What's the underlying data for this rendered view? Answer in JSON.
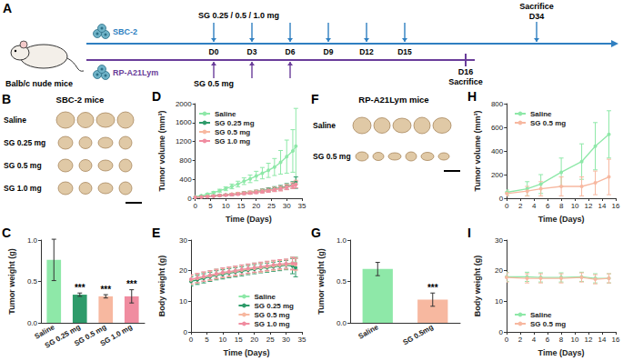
{
  "diagram": {
    "label": "A",
    "mouse_label": "Balb/c nude mice",
    "days": [
      "D0",
      "D3",
      "D6",
      "D9",
      "D12",
      "D15"
    ],
    "lines": [
      {
        "cell_line": "SBC-2",
        "dose": "SG 0.25 / 0.5 / 1.0 mg",
        "dose_days": [
          "D0",
          "D3",
          "D6",
          "D9",
          "D12",
          "D15"
        ],
        "end_day": "D34",
        "end_text": "Sacrifice",
        "color": "#2f7fc1"
      },
      {
        "cell_line": "RP-A21Lym",
        "dose": "SG 0.5 mg",
        "dose_days": [
          "D0",
          "D3",
          "D6"
        ],
        "end_day": "D16",
        "end_text": "Sacrifice",
        "color": "#6a3d9a"
      }
    ]
  },
  "photos": [
    {
      "label": "B",
      "title": "SBC-2 mice",
      "rows": [
        "Saline",
        "SG 0.25 mg",
        "SG 0.5 mg",
        "SG 1.0 mg"
      ]
    },
    {
      "label": "F",
      "title": "RP-A21Lym mice",
      "rows": [
        "Saline",
        "SG 0.5 mg"
      ]
    }
  ],
  "chart_data": [
    {
      "panel": "C",
      "type": "bar",
      "ylabel": "Tumor weight (g)",
      "categories": [
        "Saline",
        "SG 0.25 mg",
        "SG 0.5 mg",
        "SG 1.0 mg"
      ],
      "values": [
        0.76,
        0.34,
        0.32,
        0.32
      ],
      "errors": [
        0.25,
        0.02,
        0.02,
        0.08
      ],
      "significance": [
        null,
        "***",
        "***",
        "***"
      ],
      "colors": [
        "#8ee8a8",
        "#2e9b6a",
        "#f7b8a0",
        "#f08ca0"
      ],
      "ylim": [
        0,
        1
      ],
      "yticks": [
        {
          "value": 0,
          "label": "0.0"
        },
        0.5,
        {
          "value": 1,
          "label": "1.0"
        }
      ],
      "grid": false
    },
    {
      "panel": "D",
      "type": "line",
      "xlabel": "Time (Days)",
      "ylabel": "Tumor volume (mm³)",
      "x": [
        0,
        2,
        4,
        6,
        8,
        10,
        12,
        14,
        16,
        18,
        20,
        22,
        24,
        26,
        28,
        30,
        32,
        33
      ],
      "series": [
        {
          "name": "Saline",
          "color": "#8ee8a8",
          "values": [
            30,
            55,
            85,
            120,
            160,
            200,
            250,
            300,
            360,
            410,
            470,
            530,
            590,
            660,
            760,
            880,
            1000,
            1100
          ],
          "errors": [
            5,
            10,
            15,
            20,
            30,
            40,
            50,
            60,
            70,
            80,
            100,
            120,
            150,
            180,
            250,
            350,
            450,
            800
          ]
        },
        {
          "name": "SG 0.25 mg",
          "color": "#2e9b6a",
          "values": [
            20,
            30,
            40,
            50,
            60,
            70,
            80,
            95,
            110,
            120,
            140,
            160,
            180,
            200,
            220,
            250,
            280,
            330
          ],
          "errors": [
            5,
            8,
            10,
            12,
            15,
            18,
            20,
            22,
            25,
            28,
            30,
            35,
            40,
            45,
            50,
            60,
            70,
            120
          ]
        },
        {
          "name": "SG 0.5 mg",
          "color": "#f7b8a0",
          "values": [
            20,
            30,
            40,
            50,
            60,
            70,
            85,
            100,
            110,
            125,
            140,
            155,
            170,
            190,
            210,
            240,
            270,
            300
          ],
          "errors": [
            5,
            8,
            10,
            12,
            15,
            18,
            20,
            22,
            25,
            28,
            30,
            35,
            40,
            45,
            50,
            55,
            60,
            80
          ]
        },
        {
          "name": "SG 1.0 mg",
          "color": "#f08ca0",
          "values": [
            20,
            25,
            35,
            45,
            55,
            65,
            75,
            85,
            100,
            110,
            125,
            140,
            160,
            180,
            200,
            230,
            260,
            290
          ],
          "errors": [
            5,
            8,
            10,
            12,
            14,
            16,
            18,
            20,
            22,
            25,
            28,
            30,
            35,
            40,
            45,
            50,
            55,
            70
          ]
        }
      ],
      "xlim": [
        0,
        35
      ],
      "xticks": [
        0,
        5,
        10,
        15,
        20,
        25,
        30,
        35
      ],
      "ylim": [
        0,
        2000
      ],
      "yticks": [
        0,
        400,
        800,
        1200,
        1600,
        2000
      ],
      "legend": "upper left",
      "marker": "circle",
      "grid": false
    },
    {
      "panel": "E",
      "type": "line",
      "xlabel": "Time (Days)",
      "ylabel": "Body weight (g)",
      "x": [
        0,
        2,
        4,
        6,
        8,
        10,
        12,
        14,
        16,
        18,
        20,
        22,
        24,
        26,
        28,
        30,
        32,
        33
      ],
      "series": [
        {
          "name": "Saline",
          "color": "#8ee8a8",
          "values": [
            17,
            17.5,
            18,
            18.5,
            19,
            19.3,
            19.6,
            20,
            20.3,
            20.6,
            21,
            21.2,
            21.5,
            21.8,
            22,
            22.2,
            22.5,
            22.5
          ],
          "errors": [
            1.5,
            1.5,
            1.5,
            1.5,
            1.5,
            1.5,
            1.5,
            1.5,
            1.5,
            1.5,
            1.5,
            1.5,
            1.5,
            1.5,
            1.5,
            1.5,
            2,
            2
          ]
        },
        {
          "name": "SG 0.25 mg",
          "color": "#2e9b6a",
          "values": [
            16.5,
            17,
            17.5,
            18,
            18.5,
            18.8,
            19.2,
            19.5,
            19.8,
            20.2,
            20.5,
            20.8,
            21,
            21.3,
            21.5,
            21.8,
            21.5,
            21
          ],
          "errors": [
            1.5,
            1.5,
            1.5,
            1.5,
            1.5,
            1.5,
            1.5,
            1.5,
            1.5,
            1.5,
            1.5,
            1.5,
            1.5,
            1.5,
            1.5,
            1.5,
            2.5,
            3
          ]
        },
        {
          "name": "SG 0.5 mg",
          "color": "#f7b8a0",
          "values": [
            17,
            17.5,
            18,
            18.3,
            18.8,
            19.2,
            19.5,
            19.8,
            20.2,
            20.5,
            20.8,
            21,
            21.3,
            21.6,
            21.8,
            22,
            22.2,
            22
          ],
          "errors": [
            1.5,
            1.5,
            1.5,
            1.5,
            1.5,
            1.5,
            1.5,
            1.5,
            1.5,
            1.5,
            1.5,
            1.5,
            1.5,
            1.5,
            1.5,
            1.5,
            2,
            2
          ]
        },
        {
          "name": "SG 1.0 mg",
          "color": "#f08ca0",
          "values": [
            17.2,
            17.6,
            18.1,
            18.5,
            19,
            19.4,
            19.7,
            20,
            20.4,
            20.7,
            21,
            21.3,
            21.6,
            21.9,
            22.1,
            22.3,
            22.4,
            22.3
          ],
          "errors": [
            1.5,
            1.5,
            1.5,
            1.5,
            1.5,
            1.5,
            1.5,
            1.5,
            1.5,
            1.5,
            1.5,
            1.5,
            1.5,
            1.5,
            1.5,
            1.5,
            2,
            2
          ]
        }
      ],
      "xlim": [
        0,
        35
      ],
      "xticks": [
        0,
        5,
        10,
        15,
        20,
        25,
        30,
        35
      ],
      "ylim": [
        0,
        30
      ],
      "yticks": [
        0,
        10,
        20,
        30
      ],
      "legend": "lower right",
      "marker": "circle",
      "grid": false
    },
    {
      "panel": "G",
      "type": "bar",
      "ylabel": "Tumor weight (g)",
      "categories": [
        "Saline",
        "SG 0.5mg"
      ],
      "values": [
        0.65,
        0.28
      ],
      "errors": [
        0.08,
        0.08
      ],
      "significance": [
        null,
        "***"
      ],
      "colors": [
        "#8ee8a8",
        "#f7b8a0"
      ],
      "ylim": [
        0,
        1
      ],
      "yticks": [
        {
          "value": 0,
          "label": "0.0"
        },
        0.5,
        {
          "value": 1,
          "label": "1.0"
        }
      ],
      "grid": false
    },
    {
      "panel": "H",
      "type": "line",
      "xlabel": "Time (Days)",
      "ylabel": "Tumor volume (mm³)",
      "x": [
        0,
        3,
        5,
        8,
        11,
        13,
        15
      ],
      "series": [
        {
          "name": "Saline",
          "color": "#8ee8a8",
          "values": [
            50,
            80,
            120,
            220,
            310,
            440,
            540
          ],
          "errors": [
            20,
            60,
            80,
            120,
            150,
            200,
            200
          ]
        },
        {
          "name": "SG 0.5 mg",
          "color": "#f7b8a0",
          "values": [
            40,
            60,
            80,
            100,
            100,
            130,
            180
          ],
          "errors": [
            20,
            40,
            60,
            80,
            80,
            100,
            150
          ]
        }
      ],
      "xlim": [
        0,
        16
      ],
      "xticks": [
        0,
        2,
        4,
        6,
        8,
        10,
        12,
        14,
        16
      ],
      "ylim": [
        0,
        800
      ],
      "yticks": [
        0,
        200,
        400,
        600,
        800
      ],
      "legend": "upper left",
      "marker": "circle",
      "grid": false
    },
    {
      "panel": "I",
      "type": "line",
      "xlabel": "Time (Days)",
      "ylabel": "Body weight (g)",
      "x": [
        0,
        3,
        5,
        8,
        11,
        13,
        15
      ],
      "series": [
        {
          "name": "Saline",
          "color": "#8ee8a8",
          "values": [
            18,
            18,
            17.8,
            17.8,
            18,
            17.5,
            17.5
          ],
          "errors": [
            1.5,
            1.5,
            1.5,
            1.5,
            1.5,
            1.5,
            1.5
          ]
        },
        {
          "name": "SG 0.5 mg",
          "color": "#f7b8a0",
          "values": [
            17.8,
            17.5,
            17.5,
            17.5,
            17.8,
            17.2,
            17.5
          ],
          "errors": [
            1.5,
            1.5,
            1.5,
            1.5,
            1.5,
            1.5,
            1.5
          ]
        }
      ],
      "xlim": [
        0,
        16
      ],
      "xticks": [
        0,
        2,
        4,
        6,
        8,
        10,
        12,
        14,
        16
      ],
      "ylim": [
        0,
        30
      ],
      "yticks": [
        0,
        10,
        20,
        30
      ],
      "legend": "lower left",
      "marker": "circle",
      "grid": false
    }
  ]
}
